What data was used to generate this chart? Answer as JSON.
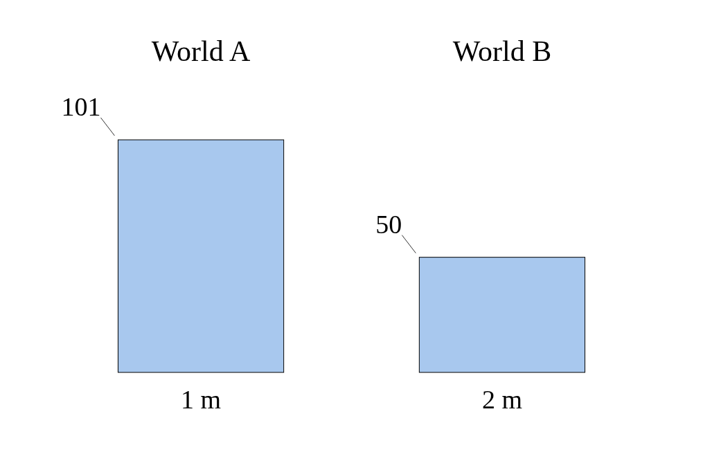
{
  "chart_data": {
    "type": "bar",
    "categories": [
      "1 m",
      "2 m"
    ],
    "values": [
      101,
      50
    ],
    "color": "#a8c8ee",
    "data_labels": true,
    "annotations": [
      "World A",
      "World B"
    ]
  }
}
